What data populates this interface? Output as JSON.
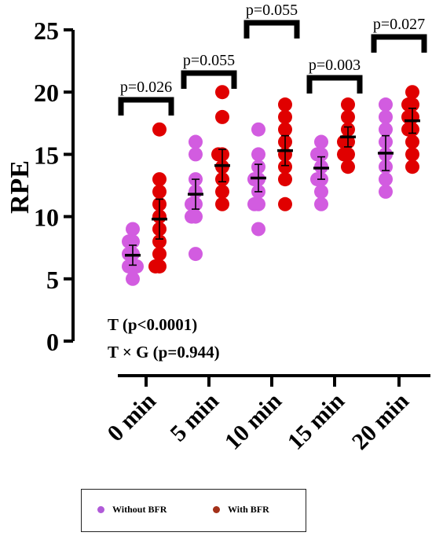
{
  "chart_data": {
    "type": "scatter",
    "ylabel": "RPE",
    "ylim": [
      0,
      25
    ],
    "yticks": [
      "0",
      "5",
      "10",
      "15",
      "20",
      "25"
    ],
    "categories": [
      "0 min",
      "5 min",
      "10 min",
      "15 min",
      "20 min"
    ],
    "series": [
      {
        "name": "Without BFR",
        "color": "#d25ce0",
        "points": [
          [
            9,
            8,
            8,
            7,
            7,
            6,
            6,
            6,
            5
          ],
          [
            16,
            15,
            13,
            12,
            11,
            11,
            10,
            10,
            7
          ],
          [
            17,
            15,
            14,
            13,
            13,
            12,
            11,
            11,
            9
          ],
          [
            16,
            15,
            15,
            14,
            13,
            13,
            12,
            11
          ],
          [
            19,
            18,
            17,
            16,
            15,
            14,
            13,
            12
          ]
        ],
        "means": [
          6.9,
          11.8,
          13.1,
          13.9,
          15.1
        ],
        "errors": [
          0.8,
          1.2,
          1.1,
          0.9,
          1.4
        ]
      },
      {
        "name": "With BFR",
        "color": "#e00000",
        "points": [
          [
            17,
            13,
            12,
            11,
            10,
            9,
            8,
            7,
            6,
            6
          ],
          [
            20,
            18,
            15,
            15,
            14,
            13,
            12,
            11
          ],
          [
            19,
            18,
            17,
            16,
            15,
            14,
            13,
            11
          ],
          [
            19,
            18,
            17,
            16,
            16,
            15,
            15,
            14
          ],
          [
            20,
            19,
            19,
            18,
            18,
            17,
            17,
            16,
            15,
            14
          ]
        ],
        "means": [
          9.8,
          14.1,
          15.3,
          16.4,
          17.7
        ],
        "errors": [
          1.6,
          1.3,
          1.2,
          0.8,
          1.0
        ]
      }
    ],
    "annotations": [
      {
        "category": "0 min",
        "text": "p=0.026"
      },
      {
        "category": "5 min",
        "text": "p=0.055"
      },
      {
        "category": "10 min",
        "text": "p=0.055"
      },
      {
        "category": "15 min",
        "text": "p=0.003"
      },
      {
        "category": "20 min",
        "text": "p=0.027"
      }
    ],
    "stats": [
      "T (p<0.0001)",
      "T × G (p=0.944)"
    ]
  },
  "legend": {
    "items": [
      {
        "label": "Without BFR",
        "color": "#b05ad8"
      },
      {
        "label": "With BFR",
        "color": "#a33018"
      }
    ]
  }
}
